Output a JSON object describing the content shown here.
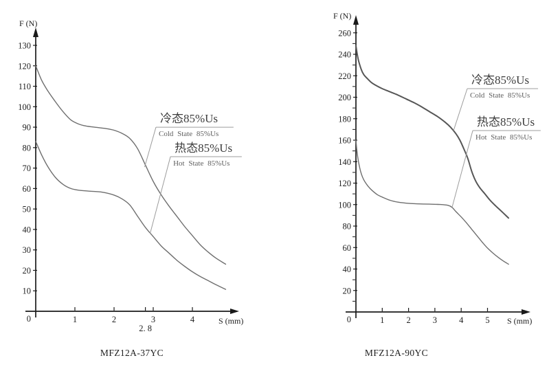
{
  "colors": {
    "background": "#ffffff",
    "axis": "#1a1a1a",
    "curve": "#6e6e6e",
    "curve_bold": "#565656",
    "leader": "#9c9c9c",
    "tick_text": "#222222",
    "caption_text": "#1e1e1e"
  },
  "chart_data": [
    {
      "type": "line",
      "caption": "MFZ12A-37YC",
      "xlabel": "S (mm)",
      "ylabel": "F (N)",
      "origin_label": "0",
      "x_ticks": [
        1,
        2,
        3,
        4
      ],
      "special_x_tick": {
        "value": 2.8,
        "label": "2. 8"
      },
      "y_ticks": [
        10,
        20,
        30,
        40,
        50,
        60,
        70,
        80,
        90,
        100,
        110,
        120,
        130
      ],
      "y_minor_ticks": [],
      "xlim": [
        0,
        5.2
      ],
      "ylim": [
        0,
        140
      ],
      "grid": false,
      "series": [
        {
          "key": "cold",
          "name_cn": "冷态85%Us",
          "name_en": "Cold State 85%Us",
          "bold": false,
          "points": [
            [
              0,
              120
            ],
            [
              0.15,
              113
            ],
            [
              0.3,
              108
            ],
            [
              0.5,
              102.5
            ],
            [
              0.7,
              97.5
            ],
            [
              0.9,
              93.5
            ],
            [
              1.1,
              91.5
            ],
            [
              1.3,
              90.5
            ],
            [
              1.5,
              90
            ],
            [
              1.8,
              89.3
            ],
            [
              2.0,
              88.5
            ],
            [
              2.2,
              87
            ],
            [
              2.4,
              84.5
            ],
            [
              2.6,
              79.5
            ],
            [
              2.8,
              71.5
            ],
            [
              3.0,
              63.5
            ],
            [
              3.2,
              57
            ],
            [
              3.4,
              51.5
            ],
            [
              3.6,
              46.5
            ],
            [
              3.8,
              41.5
            ],
            [
              4.0,
              37
            ],
            [
              4.2,
              32.5
            ],
            [
              4.4,
              29
            ],
            [
              4.6,
              26
            ],
            [
              4.85,
              23
            ]
          ]
        },
        {
          "key": "hot",
          "name_cn": "热态85%Us",
          "name_en": "Hot State 85%Us",
          "bold": false,
          "points": [
            [
              0,
              83
            ],
            [
              0.15,
              76.5
            ],
            [
              0.3,
              71
            ],
            [
              0.5,
              65.5
            ],
            [
              0.7,
              62
            ],
            [
              0.9,
              60
            ],
            [
              1.1,
              59.2
            ],
            [
              1.4,
              58.7
            ],
            [
              1.7,
              58.2
            ],
            [
              2.0,
              56.8
            ],
            [
              2.2,
              55
            ],
            [
              2.4,
              52
            ],
            [
              2.6,
              46.5
            ],
            [
              2.8,
              41
            ],
            [
              3.0,
              36.5
            ],
            [
              3.2,
              32
            ],
            [
              3.4,
              28.5
            ],
            [
              3.6,
              25
            ],
            [
              3.8,
              22
            ],
            [
              4.0,
              19.3
            ],
            [
              4.2,
              17
            ],
            [
              4.4,
              15
            ],
            [
              4.6,
              13
            ],
            [
              4.85,
              10.7
            ]
          ]
        }
      ],
      "annotations": [
        {
          "cn": "冷态85%Us",
          "en": "Cold State 85%Us",
          "line_y": 90,
          "line_x1": 3.07,
          "line_x2": 5.05,
          "target_x": 2.78,
          "target_y": 70.5
        },
        {
          "cn": "热态85%Us",
          "en": "Hot State 85%Us",
          "line_y": 75.6,
          "line_x1": 3.44,
          "line_x2": 5.26,
          "target_x": 2.92,
          "target_y": 38
        }
      ]
    },
    {
      "type": "line",
      "caption": "MFZ12A-90YC",
      "xlabel": "S (mm)",
      "ylabel": "F (N)",
      "origin_label": "0",
      "x_ticks": [
        1,
        2,
        3,
        4,
        5
      ],
      "special_x_tick": null,
      "y_ticks": [
        20,
        40,
        60,
        80,
        100,
        120,
        140,
        160,
        180,
        200,
        220,
        240,
        260
      ],
      "y_minor_ticks": [
        10,
        30,
        50,
        70,
        90,
        110,
        130,
        150,
        170,
        190,
        210,
        230,
        250
      ],
      "xlim": [
        0,
        6.6
      ],
      "ylim": [
        0,
        275
      ],
      "grid": false,
      "series": [
        {
          "key": "cold",
          "name_cn": "冷态85%Us",
          "name_en": "Cold State 85%Us",
          "bold": true,
          "points": [
            [
              0,
              248
            ],
            [
              0.05,
              240
            ],
            [
              0.1,
              234
            ],
            [
              0.2,
              226
            ],
            [
              0.3,
              221
            ],
            [
              0.45,
              217
            ],
            [
              0.6,
              213.5
            ],
            [
              0.8,
              210.5
            ],
            [
              1.0,
              208
            ],
            [
              1.3,
              205
            ],
            [
              1.6,
              202
            ],
            [
              1.9,
              198.5
            ],
            [
              2.2,
              195
            ],
            [
              2.5,
              191
            ],
            [
              2.8,
              186.5
            ],
            [
              3.1,
              182
            ],
            [
              3.4,
              176.5
            ],
            [
              3.6,
              172
            ],
            [
              3.8,
              166
            ],
            [
              3.95,
              160
            ],
            [
              4.1,
              152
            ],
            [
              4.25,
              143
            ],
            [
              4.4,
              131
            ],
            [
              4.55,
              122
            ],
            [
              4.7,
              116
            ],
            [
              4.9,
              110
            ],
            [
              5.1,
              104
            ],
            [
              5.3,
              99
            ],
            [
              5.5,
              94.5
            ],
            [
              5.8,
              87.5
            ]
          ]
        },
        {
          "key": "hot",
          "name_cn": "热态85%Us",
          "name_en": "Hot State 85%Us",
          "bold": false,
          "points": [
            [
              0,
              160
            ],
            [
              0.03,
              152
            ],
            [
              0.07,
              144
            ],
            [
              0.12,
              137
            ],
            [
              0.2,
              129
            ],
            [
              0.3,
              123
            ],
            [
              0.45,
              117.5
            ],
            [
              0.6,
              113.5
            ],
            [
              0.8,
              109.5
            ],
            [
              1.0,
              107
            ],
            [
              1.3,
              104
            ],
            [
              1.6,
              102.3
            ],
            [
              2.0,
              101.2
            ],
            [
              2.4,
              100.7
            ],
            [
              2.8,
              100.4
            ],
            [
              3.2,
              100.1
            ],
            [
              3.5,
              99.3
            ],
            [
              3.65,
              97.5
            ],
            [
              3.8,
              93.5
            ],
            [
              4.0,
              88.5
            ],
            [
              4.2,
              83
            ],
            [
              4.4,
              77
            ],
            [
              4.6,
              71
            ],
            [
              4.8,
              65
            ],
            [
              5.0,
              59.5
            ],
            [
              5.2,
              55
            ],
            [
              5.4,
              51
            ],
            [
              5.6,
              47.5
            ],
            [
              5.8,
              44.5
            ]
          ]
        }
      ],
      "annotations": [
        {
          "cn": "冷态85%Us",
          "en": "Cold State 85%Us",
          "line_y": 208,
          "line_x1": 4.23,
          "line_x2": 6.92,
          "target_x": 3.71,
          "target_y": 169
        },
        {
          "cn": "热态85%Us",
          "en": "Hot State 85%Us",
          "line_y": 169,
          "line_x1": 4.44,
          "line_x2": 7.02,
          "target_x": 3.66,
          "target_y": 98
        }
      ]
    }
  ]
}
